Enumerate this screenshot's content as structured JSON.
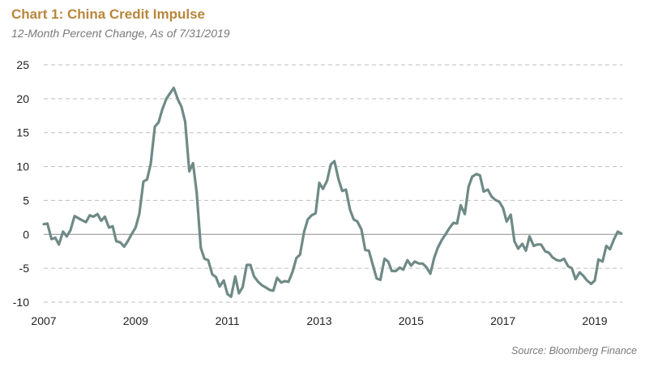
{
  "title": "Chart 1: China Credit Impulse",
  "subtitle": "12-Month Percent Change, As of 7/31/2019",
  "source": "Source: Bloomberg Finance",
  "colors": {
    "title": "#b8863b",
    "line": "#6f8a87",
    "grid": "#bfbfbf",
    "zero_line": "#8c8c8c"
  },
  "chart_data": {
    "type": "line",
    "title": "Chart 1: China Credit Impulse",
    "subtitle": "12-Month Percent Change, As of 7/31/2019",
    "xlabel": "",
    "ylabel": "",
    "xlim": [
      2007.0,
      2019.6
    ],
    "ylim": [
      -10,
      25
    ],
    "yticks": [
      25,
      20,
      15,
      10,
      5,
      0,
      -5,
      -10
    ],
    "xticks": [
      2007,
      2009,
      2011,
      2013,
      2015,
      2017,
      2019
    ],
    "grid": "horizontal dashed",
    "legend": "none",
    "series": [
      {
        "points": [
          [
            2007.0,
            1.5
          ],
          [
            2007.08,
            1.6
          ],
          [
            2007.17,
            -0.7
          ],
          [
            2007.25,
            -0.5
          ],
          [
            2007.33,
            -1.5
          ],
          [
            2007.42,
            0.4
          ],
          [
            2007.5,
            -0.3
          ],
          [
            2007.58,
            0.6
          ],
          [
            2007.67,
            2.7
          ],
          [
            2007.75,
            2.4
          ],
          [
            2007.83,
            2.1
          ],
          [
            2007.92,
            1.8
          ],
          [
            2008.0,
            2.8
          ],
          [
            2008.08,
            2.6
          ],
          [
            2008.17,
            3.0
          ],
          [
            2008.25,
            2.0
          ],
          [
            2008.33,
            2.6
          ],
          [
            2008.42,
            1.0
          ],
          [
            2008.5,
            1.2
          ],
          [
            2008.58,
            -1.0
          ],
          [
            2008.67,
            -1.2
          ],
          [
            2008.75,
            -1.8
          ],
          [
            2008.83,
            -1.0
          ],
          [
            2008.92,
            0.1
          ],
          [
            2009.0,
            1.0
          ],
          [
            2009.08,
            3.0
          ],
          [
            2009.17,
            7.8
          ],
          [
            2009.25,
            8.1
          ],
          [
            2009.33,
            10.4
          ],
          [
            2009.42,
            15.9
          ],
          [
            2009.5,
            16.5
          ],
          [
            2009.58,
            18.4
          ],
          [
            2009.67,
            20.0
          ],
          [
            2009.75,
            20.8
          ],
          [
            2009.83,
            21.6
          ],
          [
            2009.92,
            19.9
          ],
          [
            2010.0,
            18.8
          ],
          [
            2010.08,
            16.6
          ],
          [
            2010.17,
            9.3
          ],
          [
            2010.25,
            10.5
          ],
          [
            2010.33,
            6.2
          ],
          [
            2010.42,
            -2.0
          ],
          [
            2010.5,
            -3.6
          ],
          [
            2010.58,
            -3.8
          ],
          [
            2010.67,
            -5.9
          ],
          [
            2010.75,
            -6.3
          ],
          [
            2010.83,
            -7.7
          ],
          [
            2010.92,
            -6.8
          ],
          [
            2011.0,
            -8.8
          ],
          [
            2011.08,
            -9.2
          ],
          [
            2011.17,
            -6.2
          ],
          [
            2011.25,
            -8.7
          ],
          [
            2011.33,
            -7.8
          ],
          [
            2011.42,
            -4.5
          ],
          [
            2011.5,
            -4.5
          ],
          [
            2011.58,
            -6.2
          ],
          [
            2011.67,
            -7.0
          ],
          [
            2011.75,
            -7.5
          ],
          [
            2011.83,
            -7.8
          ],
          [
            2011.92,
            -8.2
          ],
          [
            2012.0,
            -8.3
          ],
          [
            2012.08,
            -6.4
          ],
          [
            2012.17,
            -7.1
          ],
          [
            2012.25,
            -6.9
          ],
          [
            2012.33,
            -7.0
          ],
          [
            2012.42,
            -5.5
          ],
          [
            2012.5,
            -3.5
          ],
          [
            2012.58,
            -3.0
          ],
          [
            2012.67,
            0.4
          ],
          [
            2012.75,
            2.2
          ],
          [
            2012.83,
            2.8
          ],
          [
            2012.92,
            3.1
          ],
          [
            2013.0,
            7.6
          ],
          [
            2013.08,
            6.7
          ],
          [
            2013.17,
            7.9
          ],
          [
            2013.25,
            10.3
          ],
          [
            2013.33,
            10.8
          ],
          [
            2013.42,
            8.1
          ],
          [
            2013.5,
            6.4
          ],
          [
            2013.58,
            6.6
          ],
          [
            2013.67,
            3.6
          ],
          [
            2013.75,
            2.2
          ],
          [
            2013.83,
            1.9
          ],
          [
            2013.92,
            0.7
          ],
          [
            2014.0,
            -2.3
          ],
          [
            2014.08,
            -2.4
          ],
          [
            2014.17,
            -4.6
          ],
          [
            2014.25,
            -6.5
          ],
          [
            2014.33,
            -6.7
          ],
          [
            2014.42,
            -3.6
          ],
          [
            2014.5,
            -4.0
          ],
          [
            2014.58,
            -5.4
          ],
          [
            2014.67,
            -5.4
          ],
          [
            2014.75,
            -4.9
          ],
          [
            2014.83,
            -5.2
          ],
          [
            2014.92,
            -3.8
          ],
          [
            2015.0,
            -4.6
          ],
          [
            2015.08,
            -4.0
          ],
          [
            2015.17,
            -4.3
          ],
          [
            2015.25,
            -4.3
          ],
          [
            2015.33,
            -4.8
          ],
          [
            2015.42,
            -5.8
          ],
          [
            2015.5,
            -3.5
          ],
          [
            2015.58,
            -2.0
          ],
          [
            2015.67,
            -0.8
          ],
          [
            2015.75,
            0.0
          ],
          [
            2015.83,
            0.9
          ],
          [
            2015.92,
            1.7
          ],
          [
            2016.0,
            1.6
          ],
          [
            2016.08,
            4.3
          ],
          [
            2016.17,
            3.0
          ],
          [
            2016.25,
            7.0
          ],
          [
            2016.33,
            8.5
          ],
          [
            2016.42,
            8.9
          ],
          [
            2016.5,
            8.7
          ],
          [
            2016.58,
            6.3
          ],
          [
            2016.67,
            6.6
          ],
          [
            2016.75,
            5.6
          ],
          [
            2016.83,
            5.1
          ],
          [
            2016.92,
            4.8
          ],
          [
            2017.0,
            3.9
          ],
          [
            2017.08,
            1.9
          ],
          [
            2017.17,
            2.9
          ],
          [
            2017.25,
            -1.0
          ],
          [
            2017.33,
            -2.1
          ],
          [
            2017.42,
            -1.4
          ],
          [
            2017.5,
            -2.4
          ],
          [
            2017.58,
            -0.3
          ],
          [
            2017.67,
            -1.7
          ],
          [
            2017.75,
            -1.5
          ],
          [
            2017.83,
            -1.5
          ],
          [
            2017.92,
            -2.5
          ],
          [
            2018.0,
            -2.7
          ],
          [
            2018.08,
            -3.4
          ],
          [
            2018.17,
            -3.8
          ],
          [
            2018.25,
            -3.9
          ],
          [
            2018.33,
            -3.6
          ],
          [
            2018.42,
            -4.7
          ],
          [
            2018.5,
            -5.0
          ],
          [
            2018.58,
            -6.6
          ],
          [
            2018.67,
            -5.6
          ],
          [
            2018.75,
            -6.1
          ],
          [
            2018.83,
            -6.8
          ],
          [
            2018.92,
            -7.3
          ],
          [
            2019.0,
            -6.8
          ],
          [
            2019.08,
            -3.7
          ],
          [
            2019.17,
            -4.0
          ],
          [
            2019.25,
            -1.7
          ],
          [
            2019.33,
            -2.2
          ],
          [
            2019.42,
            -0.7
          ],
          [
            2019.5,
            0.4
          ],
          [
            2019.58,
            0.1
          ]
        ]
      }
    ]
  }
}
